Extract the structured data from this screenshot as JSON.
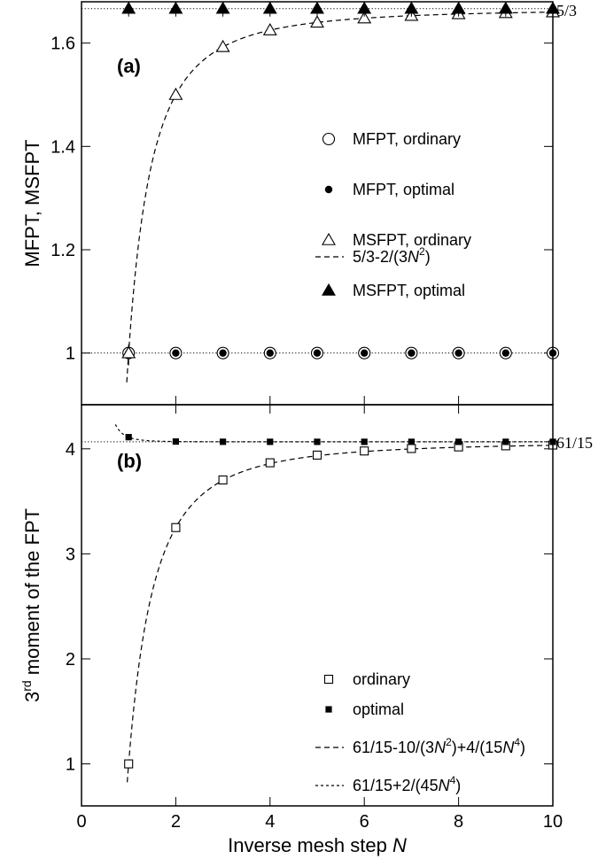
{
  "chart_data": [
    {
      "panel": "(a)",
      "type": "scatter",
      "ylabel": "MFPT, MSFPT",
      "ylim": [
        0.9,
        1.68
      ],
      "yticks": [
        1,
        1.2,
        1.4,
        1.6
      ],
      "ytick_labels": [
        "1",
        "1.2",
        "1.4",
        "1.6"
      ],
      "xlim": [
        0,
        10
      ],
      "legend_position": "right",
      "reference_line": {
        "value": 1.6667,
        "label": "5/3"
      },
      "series": [
        {
          "name": "MFPT, ordinary",
          "marker": "open-circle",
          "x": [
            1,
            2,
            3,
            4,
            5,
            6,
            7,
            8,
            9,
            10
          ],
          "y": [
            1,
            1,
            1,
            1,
            1,
            1,
            1,
            1,
            1,
            1
          ]
        },
        {
          "name": "MFPT, optimal",
          "marker": "filled-circle",
          "x": [
            1,
            2,
            3,
            4,
            5,
            6,
            7,
            8,
            9,
            10
          ],
          "y": [
            1,
            1,
            1,
            1,
            1,
            1,
            1,
            1,
            1,
            1
          ]
        },
        {
          "name": "MSFPT, ordinary",
          "marker": "open-triangle",
          "x": [
            1,
            2,
            3,
            4,
            5,
            6,
            7,
            8,
            9,
            10
          ],
          "y": [
            1.0,
            1.5,
            1.5926,
            1.625,
            1.64,
            1.6481,
            1.6531,
            1.6563,
            1.6584,
            1.66
          ]
        },
        {
          "name": "MSFPT, optimal",
          "marker": "filled-triangle",
          "x": [
            1,
            2,
            3,
            4,
            5,
            6,
            7,
            8,
            9,
            10
          ],
          "y": [
            1.6667,
            1.6667,
            1.6667,
            1.6667,
            1.6667,
            1.6667,
            1.6667,
            1.6667,
            1.6667,
            1.6667
          ]
        }
      ],
      "curves": [
        {
          "legend_main": "5/3-2/(3",
          "legend_italic": "N",
          "legend_sup": "2",
          "legend_tail": ")",
          "style": "dashed",
          "formula": "5/3-2/(3N^2)"
        }
      ]
    },
    {
      "panel": "(b)",
      "type": "scatter",
      "ylabel_prefix": "3",
      "ylabel_sup": "rd",
      "ylabel_rest": " moment of the FPT",
      "xlabel_main": "Inverse mesh step ",
      "xlabel_italic": "N",
      "xlim": [
        0,
        10
      ],
      "xticks": [
        0,
        2,
        4,
        6,
        8,
        10
      ],
      "ylim": [
        0.6,
        4.42
      ],
      "yticks": [
        1,
        2,
        3,
        4
      ],
      "ytick_labels": [
        "1",
        "2",
        "3",
        "4"
      ],
      "legend_position": "right",
      "reference_line": {
        "value": 4.0667,
        "label": "61/15"
      },
      "series": [
        {
          "name": "ordinary",
          "marker": "open-square",
          "x": [
            1,
            2,
            3,
            4,
            5,
            6,
            7,
            8,
            9,
            10
          ],
          "y": [
            1.0,
            3.25,
            3.7037,
            3.8672,
            3.9403,
            3.9794,
            4.003,
            4.0182,
            4.0287,
            4.0361
          ]
        },
        {
          "name": "optimal",
          "marker": "filled-square",
          "x": [
            1,
            2,
            3,
            4,
            5,
            6,
            7,
            8,
            9,
            10
          ],
          "y": [
            4.111,
            4.0694,
            4.0672,
            4.0668,
            4.0667,
            4.0667,
            4.0667,
            4.0667,
            4.0667,
            4.0667
          ]
        }
      ],
      "curves": [
        {
          "legend_main": "61/15-10/(3",
          "legend_italic": "N",
          "legend_sup": "2",
          "legend_mid": ")+4/(15",
          "legend_italic2": "N",
          "legend_sup2": "4",
          "legend_tail": ")",
          "style": "dashed",
          "formula": "61/15-10/(3N^2)+4/(15N^4)"
        },
        {
          "legend_main": "61/15+2/(45",
          "legend_italic": "N",
          "legend_sup": "4",
          "legend_tail": ")",
          "style": "short-dashed",
          "formula": "61/15+2/(45N^4)"
        }
      ]
    }
  ]
}
